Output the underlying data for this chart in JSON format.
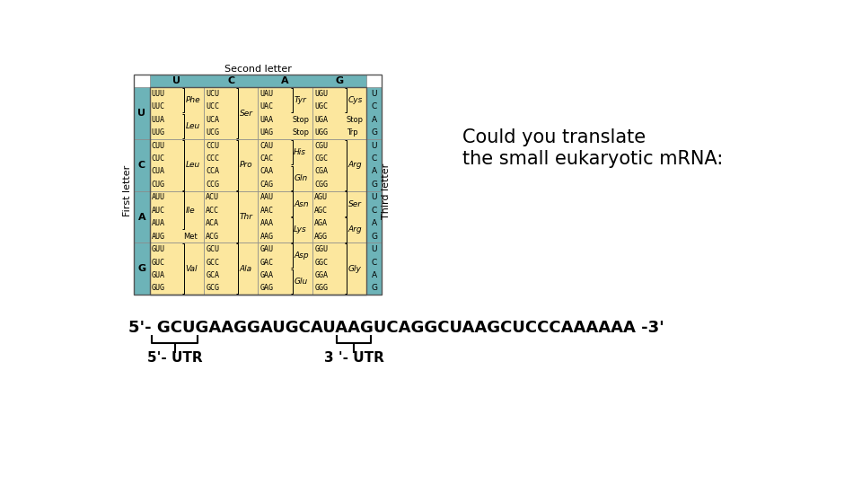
{
  "title_text": "Could you translate\nthe small eukaryotic mRNA:",
  "mrna_sequence": "5'- GCUGAAGGAUGCAUAAGUCAGGCUAAGCUCCCAAAAAA -3'",
  "utr5_label": "5'- UTR",
  "utr3_label": "3 '- UTR",
  "second_letter_label": "Second letter",
  "first_letter_label": "First letter",
  "third_letter_label": "Third letter",
  "col_headers": [
    "U",
    "C",
    "A",
    "G"
  ],
  "row_headers": [
    "U",
    "C",
    "A",
    "G"
  ],
  "header_bg": "#6db3b8",
  "cell_bg_yellow": "#fce79e",
  "bg_color": "#ffffff",
  "cell_data": {
    "UU": {
      "lines": [
        "UUU",
        "UUC",
        "UUA",
        "UUG"
      ],
      "aa_groups": [
        [
          "Phe",
          [
            0,
            1
          ]
        ],
        [
          "Leu",
          [
            2,
            3
          ]
        ]
      ]
    },
    "UC": {
      "lines": [
        "UCU",
        "UCC",
        "UCA",
        "UCG"
      ],
      "aa_groups": [
        [
          "Ser",
          [
            0,
            1,
            2,
            3
          ]
        ]
      ]
    },
    "UA": {
      "lines": [
        "UAU",
        "UAC",
        "UAA",
        "UAG"
      ],
      "aa_groups": [
        [
          "Tyr",
          [
            0,
            1
          ]
        ],
        [
          "Stop",
          [
            2
          ]
        ],
        [
          "Stop",
          [
            3
          ]
        ]
      ]
    },
    "UG": {
      "lines": [
        "UGU",
        "UGC",
        "UGA",
        "UGG"
      ],
      "aa_groups": [
        [
          "Cys",
          [
            0,
            1
          ]
        ],
        [
          "Stop",
          [
            2
          ]
        ],
        [
          "Trp",
          [
            3
          ]
        ]
      ]
    },
    "CU": {
      "lines": [
        "CUU",
        "CUC",
        "CUA",
        "CUG"
      ],
      "aa_groups": [
        [
          "Leu",
          [
            0,
            1,
            2,
            3
          ]
        ]
      ]
    },
    "CC": {
      "lines": [
        "CCU",
        "CCC",
        "CCA",
        "CCG"
      ],
      "aa_groups": [
        [
          "Pro",
          [
            0,
            1,
            2,
            3
          ]
        ]
      ]
    },
    "CA": {
      "lines": [
        "CAU",
        "CAC",
        "CAA",
        "CAG"
      ],
      "aa_groups": [
        [
          "His",
          [
            0,
            1
          ]
        ],
        [
          "Gln",
          [
            2,
            3
          ]
        ]
      ]
    },
    "CG": {
      "lines": [
        "CGU",
        "CGC",
        "CGA",
        "CGG"
      ],
      "aa_groups": [
        [
          "Arg",
          [
            0,
            1,
            2,
            3
          ]
        ]
      ]
    },
    "AU": {
      "lines": [
        "AUU",
        "AUC",
        "AUA",
        "AUG"
      ],
      "aa_groups": [
        [
          "Ile",
          [
            0,
            1,
            2
          ]
        ],
        [
          "Met",
          [
            3
          ]
        ]
      ]
    },
    "AC": {
      "lines": [
        "ACU",
        "ACC",
        "ACA",
        "ACG"
      ],
      "aa_groups": [
        [
          "Thr",
          [
            0,
            1,
            2,
            3
          ]
        ]
      ]
    },
    "AA": {
      "lines": [
        "AAU",
        "AAC",
        "AAA",
        "AAG"
      ],
      "aa_groups": [
        [
          "Asn",
          [
            0,
            1
          ]
        ],
        [
          "Lys",
          [
            2,
            3
          ]
        ]
      ]
    },
    "AG": {
      "lines": [
        "AGU",
        "AGC",
        "AGA",
        "AGG"
      ],
      "aa_groups": [
        [
          "Ser",
          [
            0,
            1
          ]
        ],
        [
          "Arg",
          [
            2,
            3
          ]
        ]
      ]
    },
    "GU": {
      "lines": [
        "GUU",
        "GUC",
        "GUA",
        "GUG"
      ],
      "aa_groups": [
        [
          "Val",
          [
            0,
            1,
            2,
            3
          ]
        ]
      ]
    },
    "GC": {
      "lines": [
        "GCU",
        "GCC",
        "GCA",
        "GCG"
      ],
      "aa_groups": [
        [
          "Ala",
          [
            0,
            1,
            2,
            3
          ]
        ]
      ]
    },
    "GA": {
      "lines": [
        "GAU",
        "GAC",
        "GAA",
        "GAG"
      ],
      "aa_groups": [
        [
          "Asp",
          [
            0,
            1
          ]
        ],
        [
          "Glu",
          [
            2,
            3
          ]
        ]
      ]
    },
    "GG": {
      "lines": [
        "GGU",
        "GGC",
        "GGA",
        "GGG"
      ],
      "aa_groups": [
        [
          "Gly",
          [
            0,
            1,
            2,
            3
          ]
        ]
      ]
    }
  }
}
